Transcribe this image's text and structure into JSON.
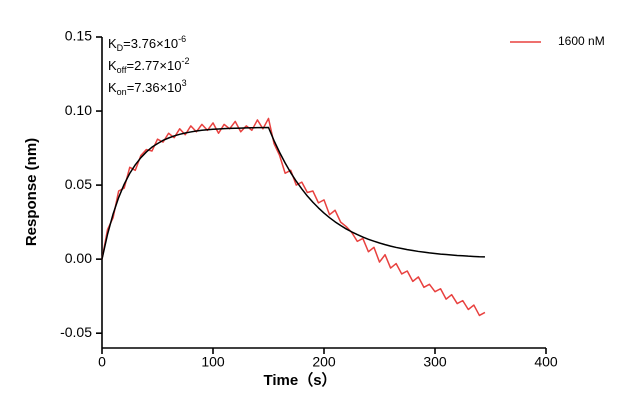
{
  "chart_data": {
    "type": "line",
    "annotations": [
      {
        "k": "K",
        "sub": "D",
        "text": "=3.76×10",
        "sup": "-6"
      },
      {
        "k": "K",
        "sub": "off",
        "text": "=2.77×10",
        "sup": "-2"
      },
      {
        "k": "K",
        "sub": "on",
        "text": "=7.36×10",
        "sup": "3"
      }
    ],
    "x_label": "Time（s）",
    "y_label": "Response (nm)",
    "xlim": [
      0,
      400
    ],
    "xticks": [
      0,
      100,
      200,
      300,
      400
    ],
    "ylim": [
      -0.06,
      0.15
    ],
    "yticks": [
      -0.05,
      {
        "value": 0,
        "label": "0.00"
      },
      0.05,
      {
        "value": 0.1,
        "label": "0.10"
      },
      0.15
    ],
    "legend": "top-right",
    "x": [
      0,
      5,
      10,
      15,
      20,
      25,
      30,
      35,
      40,
      45,
      50,
      55,
      60,
      65,
      70,
      75,
      80,
      85,
      90,
      95,
      100,
      105,
      110,
      115,
      120,
      125,
      130,
      135,
      140,
      145,
      150,
      155,
      160,
      165,
      170,
      175,
      180,
      185,
      190,
      195,
      200,
      205,
      210,
      215,
      220,
      225,
      230,
      235,
      240,
      245,
      250,
      255,
      260,
      265,
      270,
      275,
      280,
      285,
      290,
      295,
      300,
      305,
      310,
      315,
      320,
      325,
      330,
      335,
      340,
      345
    ],
    "series": [
      {
        "name": "1600 nM",
        "color": "#e8413f",
        "values": [
          0.0,
          0.02,
          0.028,
          0.046,
          0.048,
          0.062,
          0.06,
          0.07,
          0.074,
          0.073,
          0.081,
          0.079,
          0.085,
          0.082,
          0.088,
          0.084,
          0.09,
          0.086,
          0.091,
          0.087,
          0.092,
          0.085,
          0.091,
          0.088,
          0.093,
          0.086,
          0.09,
          0.087,
          0.094,
          0.088,
          0.095,
          0.078,
          0.07,
          0.058,
          0.06,
          0.05,
          0.052,
          0.045,
          0.046,
          0.038,
          0.04,
          0.03,
          0.033,
          0.025,
          0.022,
          0.018,
          0.012,
          0.014,
          0.005,
          0.008,
          -0.002,
          0.003,
          -0.006,
          -0.003,
          -0.01,
          -0.008,
          -0.015,
          -0.012,
          -0.019,
          -0.017,
          -0.022,
          -0.02,
          -0.027,
          -0.024,
          -0.03,
          -0.028,
          -0.034,
          -0.031,
          -0.038,
          -0.036
        ]
      }
    ],
    "fit": {
      "color": "#000000",
      "values": [
        0,
        0.0168,
        0.0305,
        0.0416,
        0.0506,
        0.0579,
        0.0637,
        0.0685,
        0.0724,
        0.0756,
        0.078,
        0.0802,
        0.0818,
        0.0832,
        0.0843,
        0.0852,
        0.0859,
        0.0865,
        0.087,
        0.0874,
        0.0877,
        0.0879,
        0.0881,
        0.0883,
        0.0884,
        0.0885,
        0.0886,
        0.0887,
        0.0888,
        0.0888,
        0.0889,
        0.08,
        0.0721,
        0.0649,
        0.0584,
        0.0526,
        0.0474,
        0.0426,
        0.0384,
        0.0346,
        0.0311,
        0.028,
        0.0252,
        0.0227,
        0.0204,
        0.0184,
        0.0166,
        0.0149,
        0.0134,
        0.0121,
        0.0109,
        0.0098,
        0.0088,
        0.0079,
        0.0072,
        0.0064,
        0.0058,
        0.0052,
        0.0047,
        0.0042,
        0.0038,
        0.0034,
        0.0031,
        0.0028,
        0.0025,
        0.0023,
        0.002,
        0.0018,
        0.0016,
        0.0015
      ]
    }
  }
}
